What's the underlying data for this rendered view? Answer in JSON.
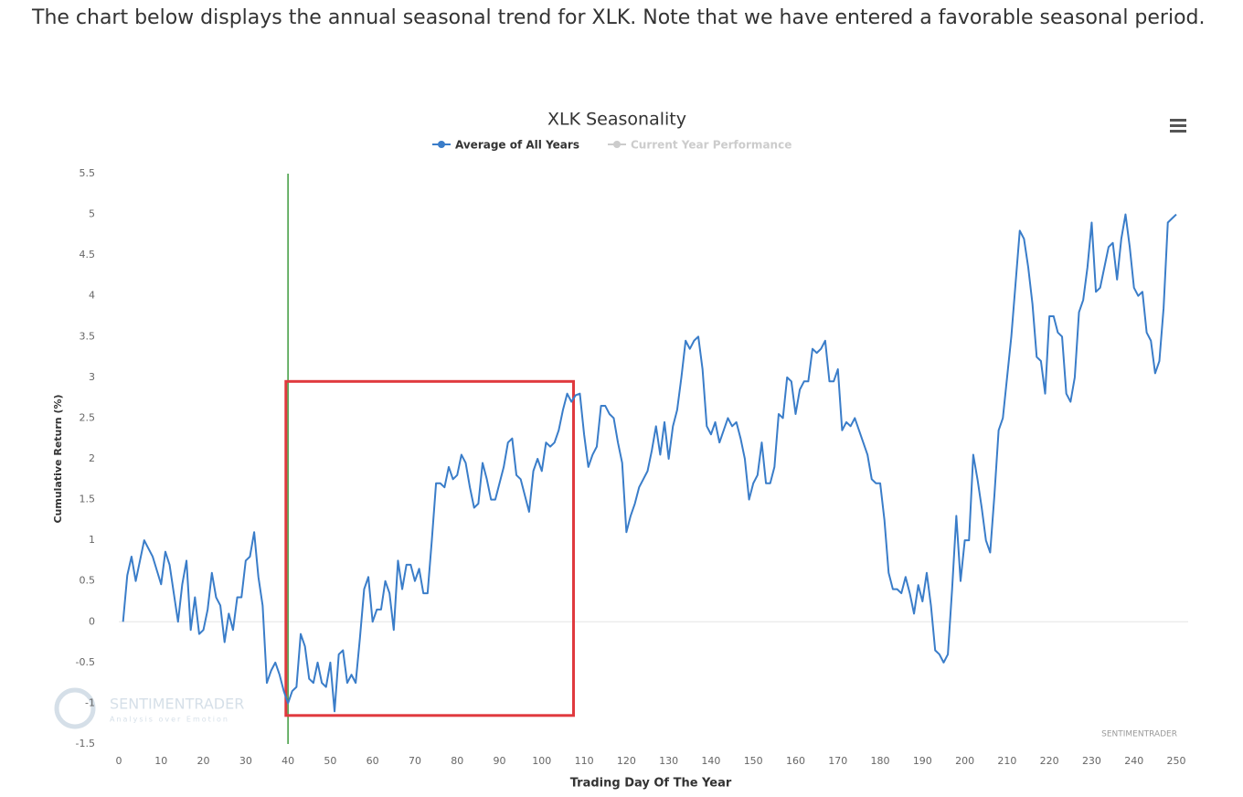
{
  "intro": "The chart below displays the annual seasonal trend for XLK. Note that we have entered a favorable seasonal period.",
  "chart_data": {
    "type": "line",
    "title": "XLK Seasonality",
    "x_label": "Trading Day Of The Year",
    "y_label": "Cumulative Return (%)",
    "watermark": "SENTIMENTRADER",
    "watermark_tagline": "Analysis over Emotion",
    "credit": "SENTIMENTRADER",
    "xlim": [
      0,
      250
    ],
    "ylim": [
      -1.5,
      5.5
    ],
    "xticks": [
      0,
      10,
      20,
      30,
      40,
      50,
      60,
      70,
      80,
      90,
      100,
      110,
      120,
      130,
      140,
      150,
      160,
      170,
      180,
      190,
      200,
      210,
      220,
      230,
      240,
      250
    ],
    "yticks": [
      -1.5,
      -1,
      -0.5,
      0,
      0.5,
      1,
      1.5,
      2,
      2.5,
      3,
      3.5,
      4,
      4.5,
      5,
      5.5
    ],
    "zero_line": true,
    "marker_x": 40,
    "marker_color": "#3c9a3c",
    "highlight": {
      "x": [
        39.5,
        107.5
      ],
      "y": [
        -1.15,
        2.95
      ],
      "color": "#e0393e"
    },
    "hidden_series": {
      "name": "Current Year Performance",
      "color": "#cccccc"
    },
    "x": [
      1,
      2,
      3,
      4,
      5,
      6,
      7,
      8,
      9,
      10,
      11,
      12,
      13,
      14,
      15,
      16,
      17,
      18,
      19,
      20,
      21,
      22,
      23,
      24,
      25,
      26,
      27,
      28,
      29,
      30,
      31,
      32,
      33,
      34,
      35,
      36,
      37,
      38,
      39,
      40,
      41,
      42,
      43,
      44,
      45,
      46,
      47,
      48,
      49,
      50,
      51,
      52,
      53,
      54,
      55,
      56,
      57,
      58,
      59,
      60,
      61,
      62,
      63,
      64,
      65,
      66,
      67,
      68,
      69,
      70,
      71,
      72,
      73,
      74,
      75,
      76,
      77,
      78,
      79,
      80,
      81,
      82,
      83,
      84,
      85,
      86,
      87,
      88,
      89,
      90,
      91,
      92,
      93,
      94,
      95,
      96,
      97,
      98,
      99,
      100,
      101,
      102,
      103,
      104,
      105,
      106,
      107,
      108,
      109,
      110,
      111,
      112,
      113,
      114,
      115,
      116,
      117,
      118,
      119,
      120,
      121,
      122,
      123,
      124,
      125,
      126,
      127,
      128,
      129,
      130,
      131,
      132,
      133,
      134,
      135,
      136,
      137,
      138,
      139,
      140,
      141,
      142,
      143,
      144,
      145,
      146,
      147,
      148,
      149,
      150,
      151,
      152,
      153,
      154,
      155,
      156,
      157,
      158,
      159,
      160,
      161,
      162,
      163,
      164,
      165,
      166,
      167,
      168,
      169,
      170,
      171,
      172,
      173,
      174,
      175,
      176,
      177,
      178,
      179,
      180,
      181,
      182,
      183,
      184,
      185,
      186,
      187,
      188,
      189,
      190,
      191,
      192,
      193,
      194,
      195,
      196,
      197,
      198,
      199,
      200,
      201,
      202,
      203,
      204,
      205,
      206,
      207,
      208,
      209,
      210,
      211,
      212,
      213,
      214,
      215,
      216,
      217,
      218,
      219,
      220,
      221,
      222,
      223,
      224,
      225,
      226,
      227,
      228,
      229,
      230,
      231,
      232,
      233,
      234,
      235,
      236,
      237,
      238,
      239,
      240,
      241,
      242,
      243,
      244,
      245,
      246,
      247,
      248,
      249,
      250
    ],
    "series": [
      {
        "name": "Average of All Years",
        "color": "#3a7dc9",
        "values": [
          0,
          0.57,
          0.8,
          0.5,
          0.75,
          1.0,
          0.9,
          0.8,
          0.63,
          0.46,
          0.86,
          0.7,
          0.35,
          0,
          0.46,
          0.75,
          -0.1,
          0.3,
          -0.15,
          -0.1,
          0.15,
          0.6,
          0.3,
          0.2,
          -0.25,
          0.1,
          -0.1,
          0.3,
          0.3,
          0.75,
          0.8,
          1.1,
          0.55,
          0.2,
          -0.75,
          -0.6,
          -0.5,
          -0.65,
          -0.85,
          -1.0,
          -0.85,
          -0.8,
          -0.15,
          -0.3,
          -0.7,
          -0.75,
          -0.5,
          -0.75,
          -0.8,
          -0.5,
          -1.1,
          -0.4,
          -0.35,
          -0.75,
          -0.65,
          -0.75,
          -0.2,
          0.4,
          0.55,
          0.0,
          0.15,
          0.15,
          0.5,
          0.35,
          -0.1,
          0.75,
          0.4,
          0.7,
          0.7,
          0.5,
          0.65,
          0.35,
          0.35,
          1.0,
          1.7,
          1.7,
          1.65,
          1.9,
          1.75,
          1.8,
          2.05,
          1.95,
          1.65,
          1.4,
          1.45,
          1.95,
          1.75,
          1.5,
          1.5,
          1.7,
          1.9,
          2.2,
          2.25,
          1.8,
          1.75,
          1.55,
          1.35,
          1.85,
          2.0,
          1.85,
          2.2,
          2.15,
          2.2,
          2.35,
          2.6,
          2.8,
          2.7,
          2.78,
          2.8,
          2.3,
          1.9,
          2.05,
          2.15,
          2.65,
          2.65,
          2.55,
          2.5,
          2.2,
          1.95,
          1.1,
          1.3,
          1.45,
          1.65,
          1.75,
          1.85,
          2.1,
          2.4,
          2.05,
          2.45,
          2.0,
          2.4,
          2.6,
          3.0,
          3.45,
          3.35,
          3.45,
          3.5,
          3.1,
          2.4,
          2.3,
          2.45,
          2.2,
          2.35,
          2.5,
          2.4,
          2.45,
          2.25,
          2.0,
          1.5,
          1.7,
          1.8,
          2.2,
          1.7,
          1.7,
          1.9,
          2.55,
          2.5,
          3.0,
          2.95,
          2.55,
          2.85,
          2.95,
          2.95,
          3.35,
          3.3,
          3.35,
          3.45,
          2.95,
          2.95,
          3.1,
          2.35,
          2.45,
          2.4,
          2.5,
          2.35,
          2.2,
          2.05,
          1.75,
          1.7,
          1.7,
          1.25,
          0.6,
          0.4,
          0.4,
          0.35,
          0.55,
          0.35,
          0.1,
          0.45,
          0.25,
          0.6,
          0.2,
          -0.35,
          -0.4,
          -0.5,
          -0.4,
          0.4,
          1.3,
          0.5,
          1.0,
          1.0,
          2.05,
          1.75,
          1.4,
          1.0,
          0.85,
          1.55,
          2.35,
          2.5,
          3.0,
          3.5,
          4.15,
          4.8,
          4.7,
          4.35,
          3.9,
          3.25,
          3.2,
          2.8,
          3.75,
          3.75,
          3.55,
          3.5,
          2.8,
          2.7,
          3.0,
          3.8,
          3.95,
          4.35,
          4.9,
          4.05,
          4.1,
          4.35,
          4.6,
          4.65,
          4.2,
          4.7,
          5.0,
          4.6,
          4.1,
          4.0,
          4.05,
          3.55,
          3.45,
          3.05,
          3.2,
          3.85,
          4.9,
          4.95,
          5.0
        ]
      }
    ]
  }
}
